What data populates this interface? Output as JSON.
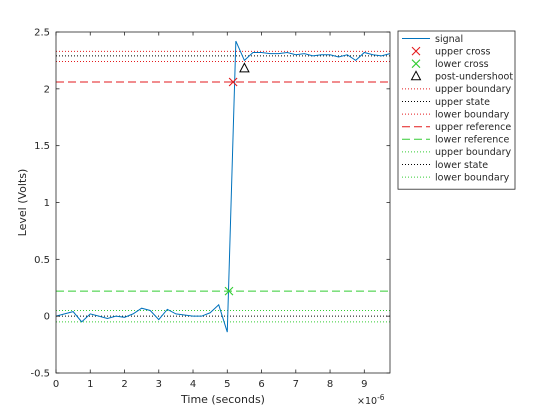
{
  "chart_data": {
    "type": "line",
    "xlabel": "Time (seconds)",
    "ylabel": "Level (Volts)",
    "x_exponent_label": "×10",
    "x_exponent_power": "-6",
    "xlim": [
      0,
      9.75
    ],
    "ylim": [
      -0.5,
      2.5
    ],
    "x_ticks": [
      "0",
      "1",
      "2",
      "3",
      "4",
      "5",
      "6",
      "7",
      "8",
      "9"
    ],
    "y_ticks": [
      "-0.5",
      "0",
      "0.5",
      "1",
      "1.5",
      "2",
      "2.5"
    ],
    "grid": false,
    "legend_position": "outside-right",
    "legend": [
      {
        "label": "signal",
        "kind": "line",
        "style": "solid",
        "color": "#0072BD"
      },
      {
        "label": "upper cross",
        "kind": "marker",
        "marker": "x",
        "color": "#e31a1c"
      },
      {
        "label": "lower cross",
        "kind": "marker",
        "marker": "x",
        "color": "#33cc33"
      },
      {
        "label": "post-undershoot",
        "kind": "marker",
        "marker": "triangle",
        "color": "#000000"
      },
      {
        "label": "upper boundary",
        "kind": "line",
        "style": "dotted",
        "color": "#e31a1c"
      },
      {
        "label": "upper state",
        "kind": "line",
        "style": "dotted",
        "color": "#000000"
      },
      {
        "label": "lower boundary",
        "kind": "line",
        "style": "dotted",
        "color": "#e31a1c"
      },
      {
        "label": "upper reference",
        "kind": "line",
        "style": "dashed",
        "color": "#e31a1c"
      },
      {
        "label": "lower reference",
        "kind": "line",
        "style": "dashed",
        "color": "#33cc33"
      },
      {
        "label": "upper boundary",
        "kind": "line",
        "style": "dotted",
        "color": "#33cc33"
      },
      {
        "label": "lower state",
        "kind": "line",
        "style": "dotted",
        "color": "#000000"
      },
      {
        "label": "lower boundary",
        "kind": "line",
        "style": "dotted",
        "color": "#33cc33"
      }
    ],
    "signal": {
      "x": [
        0,
        0.25,
        0.5,
        0.75,
        1.0,
        1.25,
        1.5,
        1.75,
        2.0,
        2.25,
        2.5,
        2.75,
        3.0,
        3.25,
        3.5,
        3.75,
        4.0,
        4.25,
        4.5,
        4.75,
        5.0,
        5.25,
        5.5,
        5.75,
        6.0,
        6.25,
        6.5,
        6.75,
        7.0,
        7.25,
        7.5,
        7.75,
        8.0,
        8.25,
        8.5,
        8.75,
        9.0,
        9.25,
        9.5,
        9.75
      ],
      "y": [
        0.0,
        0.02,
        0.04,
        -0.05,
        0.02,
        0.0,
        -0.02,
        0.0,
        -0.01,
        0.02,
        0.07,
        0.05,
        -0.03,
        0.06,
        0.02,
        0.01,
        0.0,
        0.0,
        0.03,
        0.1,
        -0.14,
        2.42,
        2.25,
        2.32,
        2.32,
        2.31,
        2.31,
        2.32,
        2.3,
        2.31,
        2.29,
        2.3,
        2.3,
        2.28,
        2.3,
        2.25,
        2.32,
        2.3,
        2.29,
        2.31
      ]
    },
    "upper_cross": {
      "x": 5.17,
      "y": 2.06
    },
    "lower_cross": {
      "x": 5.05,
      "y": 0.22
    },
    "post_undershoot": {
      "x": 5.5,
      "y": 2.18
    },
    "hlines": [
      {
        "name": "upper boundary (upper)",
        "y": 2.33,
        "style": "dotted",
        "color": "#e31a1c"
      },
      {
        "name": "upper state",
        "y": 2.29,
        "style": "dotted",
        "color": "#000000"
      },
      {
        "name": "lower boundary (upper)",
        "y": 2.24,
        "style": "dotted",
        "color": "#e31a1c"
      },
      {
        "name": "upper reference",
        "y": 2.06,
        "style": "dashed",
        "color": "#e31a1c"
      },
      {
        "name": "lower reference",
        "y": 0.22,
        "style": "dashed",
        "color": "#33cc33"
      },
      {
        "name": "upper boundary (lower)",
        "y": 0.05,
        "style": "dotted",
        "color": "#33cc33"
      },
      {
        "name": "lower state",
        "y": 0.0,
        "style": "dotted",
        "color": "#000000"
      },
      {
        "name": "lower boundary (lower)",
        "y": -0.05,
        "style": "dotted",
        "color": "#33cc33"
      }
    ]
  }
}
